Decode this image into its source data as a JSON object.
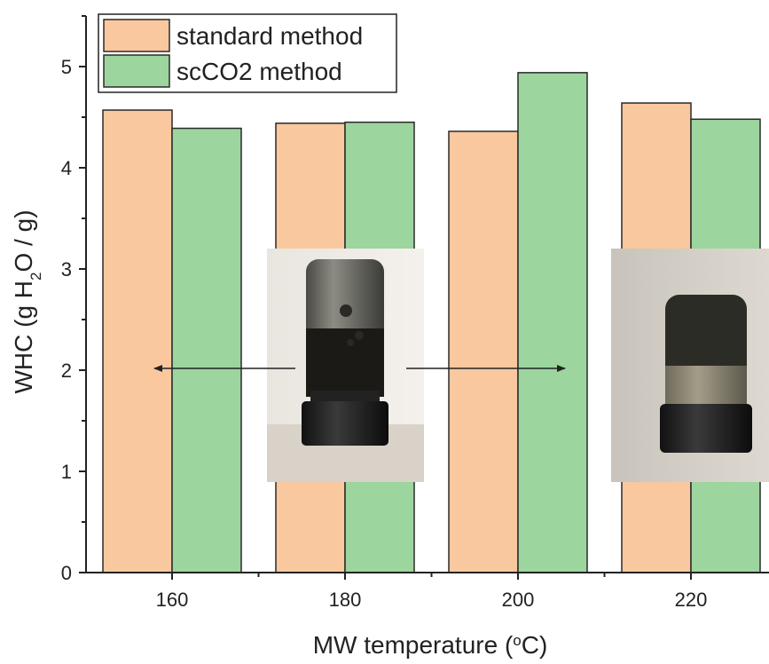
{
  "chart_data": {
    "type": "bar",
    "xlabel_pre": "MW temperature (",
    "xlabel_sup": "o",
    "xlabel_post": "C)",
    "ylabel_pre": "WHC (g H",
    "ylabel_sub": "2",
    "ylabel_post": "O / g)",
    "categories": [
      "160",
      "180",
      "200",
      "220"
    ],
    "yticks": [
      "0",
      "1",
      "2",
      "3",
      "4",
      "5"
    ],
    "ylim": [
      0,
      5.5
    ],
    "series": [
      {
        "name": "standard method",
        "color": "#f9c89f",
        "values": [
          4.57,
          4.44,
          4.36,
          4.64
        ]
      },
      {
        "name": "scCO2 method",
        "color": "#9cd59e",
        "values": [
          4.39,
          4.45,
          4.94,
          4.48
        ]
      }
    ],
    "legend_position": "top-left",
    "grid": false,
    "insets": [
      {
        "description": "photo of vial with dark liquid",
        "points_to": "160"
      },
      {
        "description": "photo of vial with solid contents",
        "points_to": "200"
      }
    ]
  }
}
